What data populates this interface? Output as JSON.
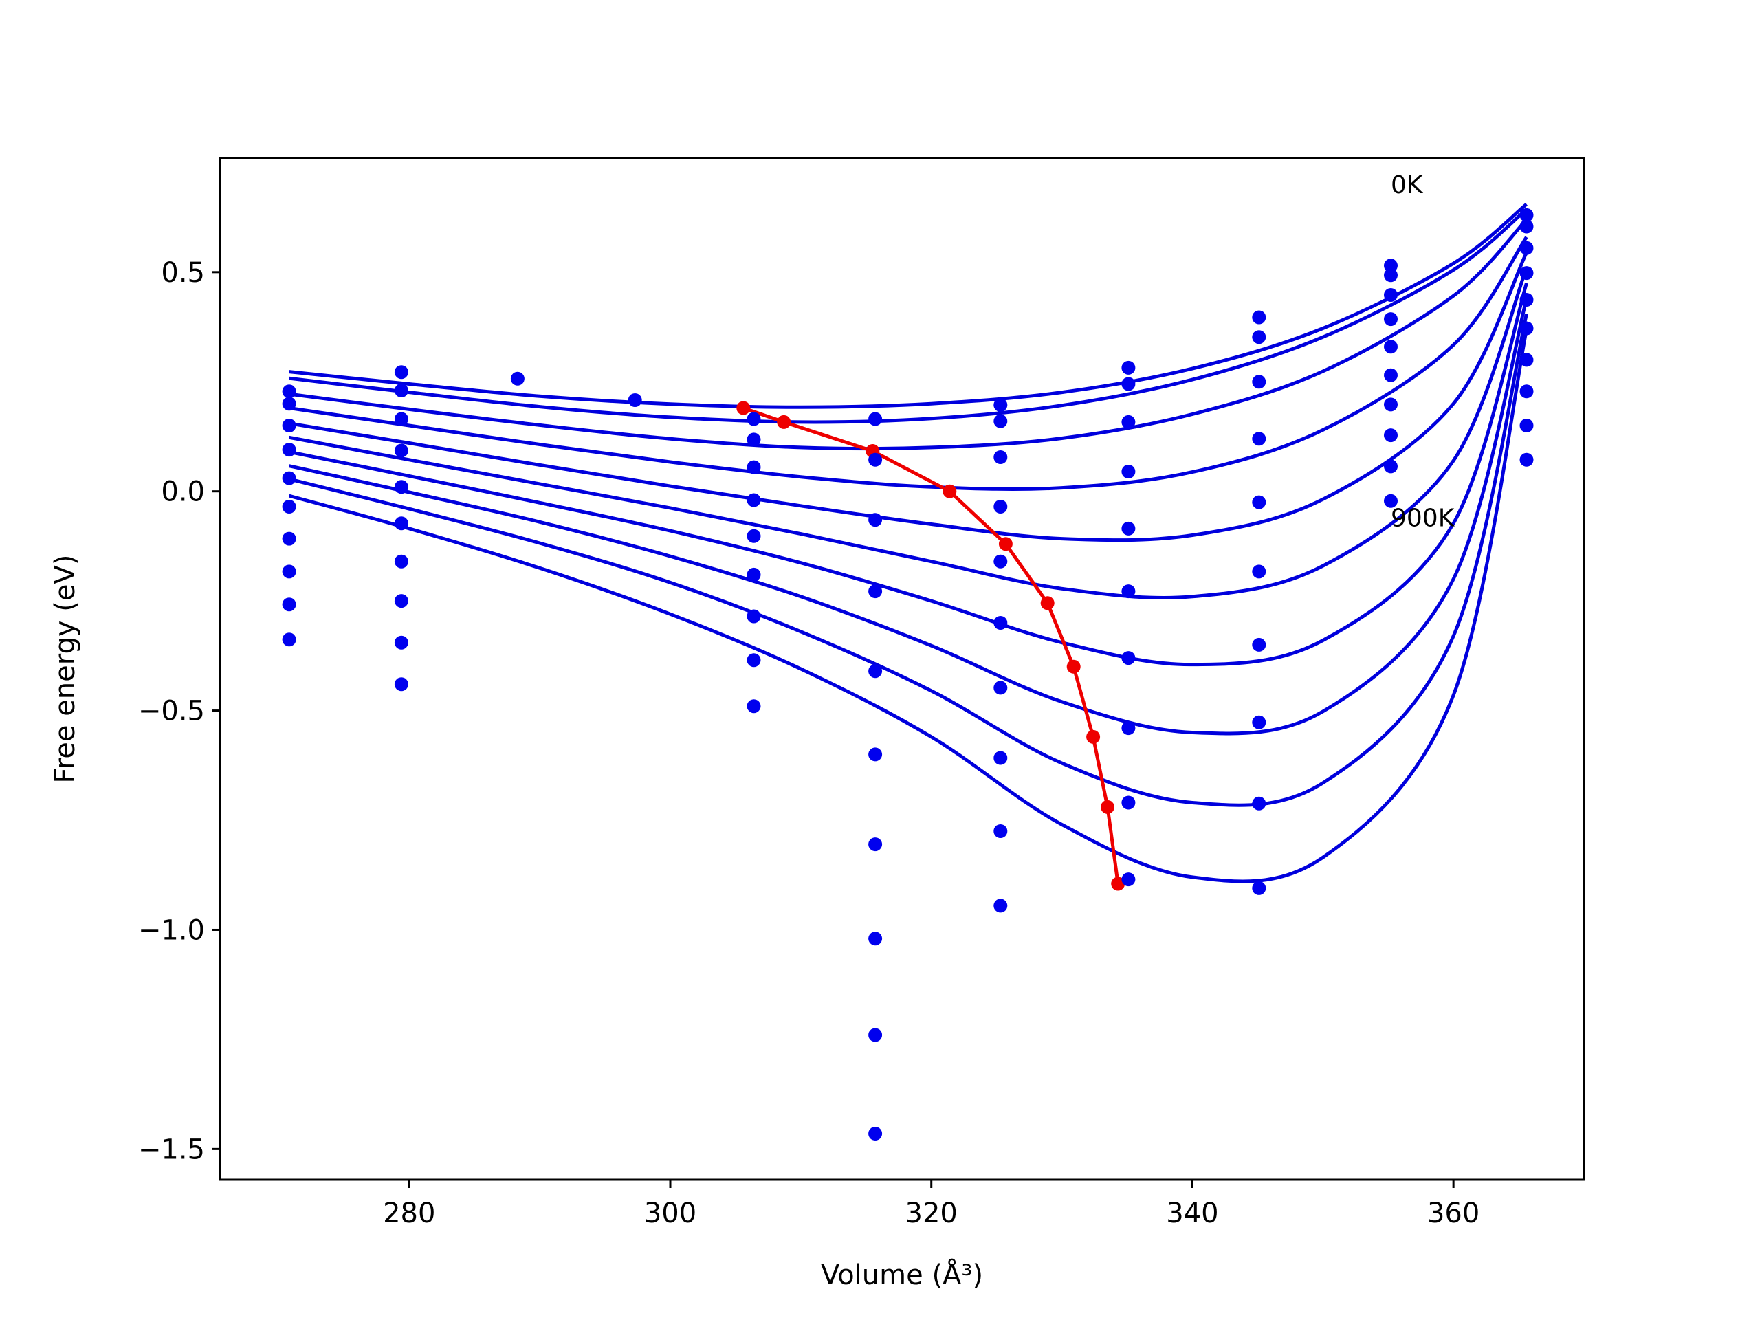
{
  "chart_data": {
    "type": "scatter",
    "xlabel": "Volume (Å³)",
    "ylabel": "Free energy (eV)",
    "xlim": [
      265.5,
      370.0
    ],
    "ylim": [
      -1.57,
      0.76
    ],
    "grid": false,
    "xticks": [
      280,
      300,
      320,
      340,
      360
    ],
    "yticks": [
      0.5,
      0.0,
      -0.5,
      -1.0,
      -1.5
    ],
    "xtick_labels": [
      "280",
      "300",
      "320",
      "340",
      "360"
    ],
    "ytick_labels": [
      "0.5",
      "0.0",
      "−0.5",
      "−1.0",
      "−1.5"
    ],
    "annotations": [
      {
        "text": "0K",
        "x": 355.2,
        "y": 0.68
      },
      {
        "text": "900K",
        "x": 355.2,
        "y": -0.08
      }
    ],
    "colors": {
      "points": "#0000ee",
      "fits": "#0000dd",
      "minimum_path": "#ee0000"
    },
    "scatter_points": [
      [
        270.8,
        0.228
      ],
      [
        270.8,
        0.2
      ],
      [
        270.8,
        0.15
      ],
      [
        270.8,
        0.095
      ],
      [
        270.8,
        0.03
      ],
      [
        270.8,
        -0.035
      ],
      [
        270.8,
        -0.108
      ],
      [
        270.8,
        -0.183
      ],
      [
        270.8,
        -0.258
      ],
      [
        270.8,
        -0.338
      ],
      [
        279.4,
        0.272
      ],
      [
        279.4,
        0.23
      ],
      [
        279.4,
        0.165
      ],
      [
        279.4,
        0.093
      ],
      [
        279.4,
        0.01
      ],
      [
        279.4,
        -0.073
      ],
      [
        279.4,
        -0.16
      ],
      [
        279.4,
        -0.25
      ],
      [
        279.4,
        -0.345
      ],
      [
        279.4,
        -0.44
      ],
      [
        288.3,
        0.257
      ],
      [
        297.3,
        0.208
      ],
      [
        306.4,
        0.165
      ],
      [
        306.4,
        0.118
      ],
      [
        306.4,
        0.055
      ],
      [
        306.4,
        -0.02
      ],
      [
        306.4,
        -0.102
      ],
      [
        306.4,
        -0.19
      ],
      [
        306.4,
        -0.285
      ],
      [
        306.4,
        -0.385
      ],
      [
        306.4,
        -0.49
      ],
      [
        315.7,
        0.165
      ],
      [
        315.7,
        0.072
      ],
      [
        315.7,
        -0.065
      ],
      [
        315.7,
        -0.228
      ],
      [
        315.7,
        -0.41
      ],
      [
        315.7,
        -0.6
      ],
      [
        315.7,
        -0.805
      ],
      [
        315.7,
        -1.02
      ],
      [
        315.7,
        -1.24
      ],
      [
        315.7,
        -1.465
      ],
      [
        325.3,
        0.197
      ],
      [
        325.3,
        0.16
      ],
      [
        325.3,
        0.078
      ],
      [
        325.3,
        -0.035
      ],
      [
        325.3,
        -0.16
      ],
      [
        325.3,
        -0.3
      ],
      [
        325.3,
        -0.448
      ],
      [
        325.3,
        -0.608
      ],
      [
        325.3,
        -0.775
      ],
      [
        325.3,
        -0.945
      ],
      [
        335.1,
        0.282
      ],
      [
        335.1,
        0.245
      ],
      [
        335.1,
        0.158
      ],
      [
        335.1,
        0.045
      ],
      [
        335.1,
        -0.085
      ],
      [
        335.1,
        -0.228
      ],
      [
        335.1,
        -0.38
      ],
      [
        335.1,
        -0.54
      ],
      [
        335.1,
        -0.71
      ],
      [
        335.1,
        -0.885
      ],
      [
        345.1,
        0.397
      ],
      [
        345.1,
        0.352
      ],
      [
        345.1,
        0.25
      ],
      [
        345.1,
        0.12
      ],
      [
        345.1,
        -0.025
      ],
      [
        345.1,
        -0.183
      ],
      [
        345.1,
        -0.35
      ],
      [
        345.1,
        -0.527
      ],
      [
        345.1,
        -0.712
      ],
      [
        345.1,
        -0.905
      ],
      [
        355.2,
        0.515
      ],
      [
        355.2,
        0.493
      ],
      [
        355.2,
        0.448
      ],
      [
        355.2,
        0.393
      ],
      [
        355.2,
        0.33
      ],
      [
        355.2,
        0.265
      ],
      [
        355.2,
        0.198
      ],
      [
        355.2,
        0.128
      ],
      [
        355.2,
        0.057
      ],
      [
        355.2,
        -0.022
      ],
      [
        365.6,
        0.63
      ],
      [
        365.6,
        0.604
      ],
      [
        365.6,
        0.555
      ],
      [
        365.6,
        0.498
      ],
      [
        365.6,
        0.437
      ],
      [
        365.6,
        0.372
      ],
      [
        365.6,
        0.3
      ],
      [
        365.6,
        0.228
      ],
      [
        365.6,
        0.15
      ],
      [
        365.6,
        0.072
      ]
    ],
    "fit_curves": [
      {
        "x": [
          270.8,
          280,
          290,
          300,
          310,
          320,
          330,
          340,
          350,
          360,
          365.6
        ],
        "y": [
          0.273,
          0.245,
          0.217,
          0.199,
          0.192,
          0.2,
          0.226,
          0.28,
          0.372,
          0.52,
          0.655
        ]
      },
      {
        "x": [
          270.8,
          280,
          290,
          300,
          310,
          320,
          330,
          340,
          350,
          360,
          365.6
        ],
        "y": [
          0.258,
          0.226,
          0.193,
          0.169,
          0.158,
          0.166,
          0.196,
          0.255,
          0.352,
          0.505,
          0.643
        ]
      },
      {
        "x": [
          270.8,
          280,
          290,
          300,
          310,
          320,
          330,
          340,
          350,
          360,
          365.6
        ],
        "y": [
          0.222,
          0.187,
          0.151,
          0.12,
          0.1,
          0.1,
          0.121,
          0.176,
          0.274,
          0.446,
          0.62
        ]
      },
      {
        "x": [
          270.8,
          280,
          290,
          300,
          310,
          320,
          330,
          340,
          350,
          360,
          365.6
        ],
        "y": [
          0.19,
          0.15,
          0.107,
          0.067,
          0.033,
          0.01,
          0.008,
          0.044,
          0.14,
          0.334,
          0.58
        ]
      },
      {
        "x": [
          270.8,
          280,
          290,
          300,
          310,
          320,
          330,
          340,
          350,
          360,
          365.6
        ],
        "y": [
          0.155,
          0.11,
          0.06,
          0.012,
          -0.033,
          -0.075,
          -0.108,
          -0.1,
          -0.018,
          0.2,
          0.545
        ]
      },
      {
        "x": [
          270.8,
          280,
          290,
          300,
          310,
          320,
          330,
          340,
          350,
          360,
          365.6
        ],
        "y": [
          0.123,
          0.072,
          0.017,
          -0.038,
          -0.097,
          -0.16,
          -0.222,
          -0.24,
          -0.17,
          0.07,
          0.51
        ]
      },
      {
        "x": [
          270.8,
          280,
          290,
          300,
          310,
          320,
          330,
          340,
          350,
          360,
          365.6
        ],
        "y": [
          0.09,
          0.035,
          -0.026,
          -0.09,
          -0.163,
          -0.25,
          -0.345,
          -0.395,
          -0.34,
          -0.073,
          0.475
        ]
      },
      {
        "x": [
          270.8,
          280,
          290,
          300,
          310,
          320,
          330,
          340,
          350,
          360,
          365.6
        ],
        "y": [
          0.058,
          -0.002,
          -0.07,
          -0.148,
          -0.24,
          -0.352,
          -0.48,
          -0.55,
          -0.502,
          -0.2,
          0.44
        ]
      },
      {
        "x": [
          270.8,
          280,
          290,
          300,
          310,
          320,
          330,
          340,
          350,
          360,
          365.6
        ],
        "y": [
          0.028,
          -0.04,
          -0.118,
          -0.208,
          -0.32,
          -0.455,
          -0.62,
          -0.71,
          -0.665,
          -0.33,
          0.405
        ]
      },
      {
        "x": [
          270.8,
          280,
          290,
          300,
          310,
          320,
          330,
          340,
          350,
          360,
          365.6
        ],
        "y": [
          -0.01,
          -0.085,
          -0.175,
          -0.28,
          -0.405,
          -0.56,
          -0.76,
          -0.88,
          -0.835,
          -0.465,
          0.37
        ]
      }
    ],
    "minimum_path": {
      "x": [
        305.6,
        308.7,
        315.5,
        321.4,
        325.7,
        328.9,
        330.9,
        332.4,
        333.5,
        334.3
      ],
      "y": [
        0.19,
        0.158,
        0.092,
        0.0,
        -0.12,
        -0.255,
        -0.4,
        -0.56,
        -0.72,
        -0.895
      ]
    }
  }
}
